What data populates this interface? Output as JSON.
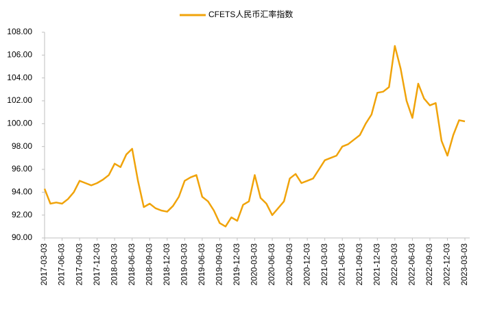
{
  "chart_data": {
    "type": "line",
    "categories": [
      "2017-03-03",
      null,
      null,
      "2017-06-03",
      null,
      null,
      "2017-09-03",
      null,
      null,
      "2017-12-03",
      null,
      null,
      "2018-03-03",
      null,
      null,
      "2018-06-03",
      null,
      null,
      "2018-09-03",
      null,
      null,
      "2018-12-03",
      null,
      null,
      "2019-03-03",
      null,
      null,
      "2019-06-03",
      null,
      null,
      "2019-09-03",
      null,
      null,
      "2019-12-03",
      null,
      null,
      "2020-03-03",
      null,
      null,
      "2020-06-03",
      null,
      null,
      "2020-09-03",
      null,
      null,
      "2020-12-03",
      null,
      null,
      "2021-03-03",
      null,
      null,
      "2021-06-03",
      null,
      null,
      "2021-09-03",
      null,
      null,
      "2021-12-03",
      null,
      null,
      "2022-03-03",
      null,
      null,
      "2022-06-03",
      null,
      null,
      "2022-09-03",
      null,
      null,
      "2022-12-03",
      null,
      null,
      "2023-03-03"
    ],
    "series": [
      {
        "name": "CFETS人民币汇率指数",
        "color": "#f0a30a",
        "values": [
          94.3,
          93.0,
          93.1,
          93.0,
          93.4,
          94.0,
          95.0,
          94.8,
          94.6,
          94.8,
          95.1,
          95.5,
          96.5,
          96.2,
          97.3,
          97.8,
          95.0,
          92.7,
          93.0,
          92.6,
          92.4,
          92.3,
          92.8,
          93.6,
          95.0,
          95.3,
          95.5,
          93.6,
          93.2,
          92.4,
          91.3,
          91.0,
          91.8,
          91.5,
          92.9,
          93.2,
          95.5,
          93.5,
          93.0,
          92.0,
          92.6,
          93.2,
          95.2,
          95.6,
          94.8,
          95.0,
          95.2,
          96.0,
          96.8,
          97.0,
          97.2,
          98.0,
          98.2,
          98.6,
          99.0,
          100.0,
          100.8,
          102.7,
          102.8,
          103.2,
          106.8,
          104.8,
          102.0,
          100.5,
          103.5,
          102.2,
          101.6,
          101.8,
          98.5,
          97.2,
          99.0,
          100.3,
          100.2
        ]
      }
    ],
    "ylim": [
      90,
      108
    ],
    "yticks": [
      {
        "value": 90,
        "label": "90.00"
      },
      {
        "value": 92,
        "label": "92.00"
      },
      {
        "value": 94,
        "label": "94.00"
      },
      {
        "value": 96,
        "label": "96.00"
      },
      {
        "value": 98,
        "label": "98.00"
      },
      {
        "value": 100,
        "label": "100.00"
      },
      {
        "value": 102,
        "label": "102.00"
      },
      {
        "value": 104,
        "label": "104.00"
      },
      {
        "value": 106,
        "label": "106.00"
      },
      {
        "value": 108,
        "label": "108.00"
      }
    ],
    "grid": false
  }
}
